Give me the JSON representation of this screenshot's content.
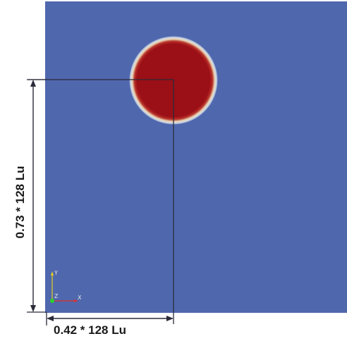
{
  "figure": {
    "domain_width_label": "0.42 * 128 Lu",
    "domain_height_label": "0.73 * 128 Lu",
    "domain_color": "#4f67ad",
    "droplet_color": "#9b0f16",
    "droplet_edge_color": "#f2e8c6",
    "line_color": "#2b2b3a",
    "orientation_axes": {
      "x_label": "X",
      "y_label": "Y",
      "z_label": "Z",
      "x_color": "#e0302a",
      "y_color": "#e6d21a",
      "z_color": "#2bd12b"
    }
  }
}
